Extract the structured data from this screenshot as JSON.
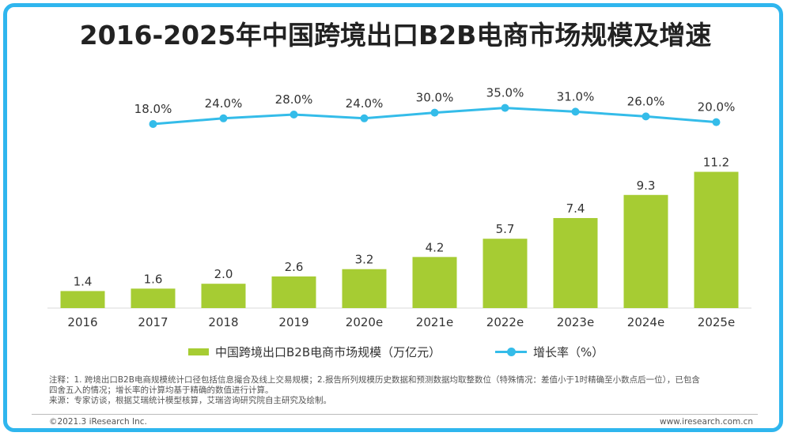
{
  "title": "2016-2025年中国跨境出口B2B电商市场规模及增速",
  "legend": {
    "bar_label": "中国跨境出口B2B电商市场规模（万亿元）",
    "line_label": "增长率（%）"
  },
  "chart_data": {
    "type": "bar",
    "categories": [
      "2016",
      "2017",
      "2018",
      "2019",
      "2020e",
      "2021e",
      "2022e",
      "2023e",
      "2024e",
      "2025e"
    ],
    "series": [
      {
        "name": "中国跨境出口B2B电商市场规模（万亿元）",
        "type": "bar",
        "values": [
          1.4,
          1.6,
          2.0,
          2.6,
          3.2,
          4.2,
          5.7,
          7.4,
          9.3,
          11.2
        ],
        "labels": [
          "1.4",
          "1.6",
          "2.0",
          "2.6",
          "3.2",
          "4.2",
          "5.7",
          "7.4",
          "9.3",
          "11.2"
        ]
      },
      {
        "name": "增长率（%）",
        "type": "line",
        "values": [
          null,
          18.0,
          24.0,
          28.0,
          24.0,
          30.0,
          35.0,
          31.0,
          26.0,
          20.0
        ],
        "labels": [
          "",
          "18.0%",
          "24.0%",
          "28.0%",
          "24.0%",
          "30.0%",
          "35.0%",
          "31.0%",
          "26.0%",
          "20.0%"
        ]
      }
    ],
    "bar_ylim": [
      0,
      12
    ],
    "line_ylim": [
      0,
      40
    ],
    "grid": false,
    "legend_position": "bottom"
  },
  "colors": {
    "bar": "#a6cc33",
    "line": "#34bce9",
    "frame": "#2fb6ee"
  },
  "notes": {
    "line1": "注释：1. 跨境出口B2B电商规模统计口径包括信息撮合及线上交易规模；2.报告所列规模历史数据和预测数据均取整数位（特殊情况：差值小于1时精确至小数点后一位），已包含",
    "line2": "四舍五入的情况；增长率的计算均基于精确的数值进行计算。",
    "source": "来源：专家访谈，根据艾瑞统计模型核算，艾瑞咨询研究院自主研究及绘制。"
  },
  "footer": {
    "copyright": "©2021.3 iResearch Inc.",
    "website": "www.iresearch.com.cn"
  }
}
